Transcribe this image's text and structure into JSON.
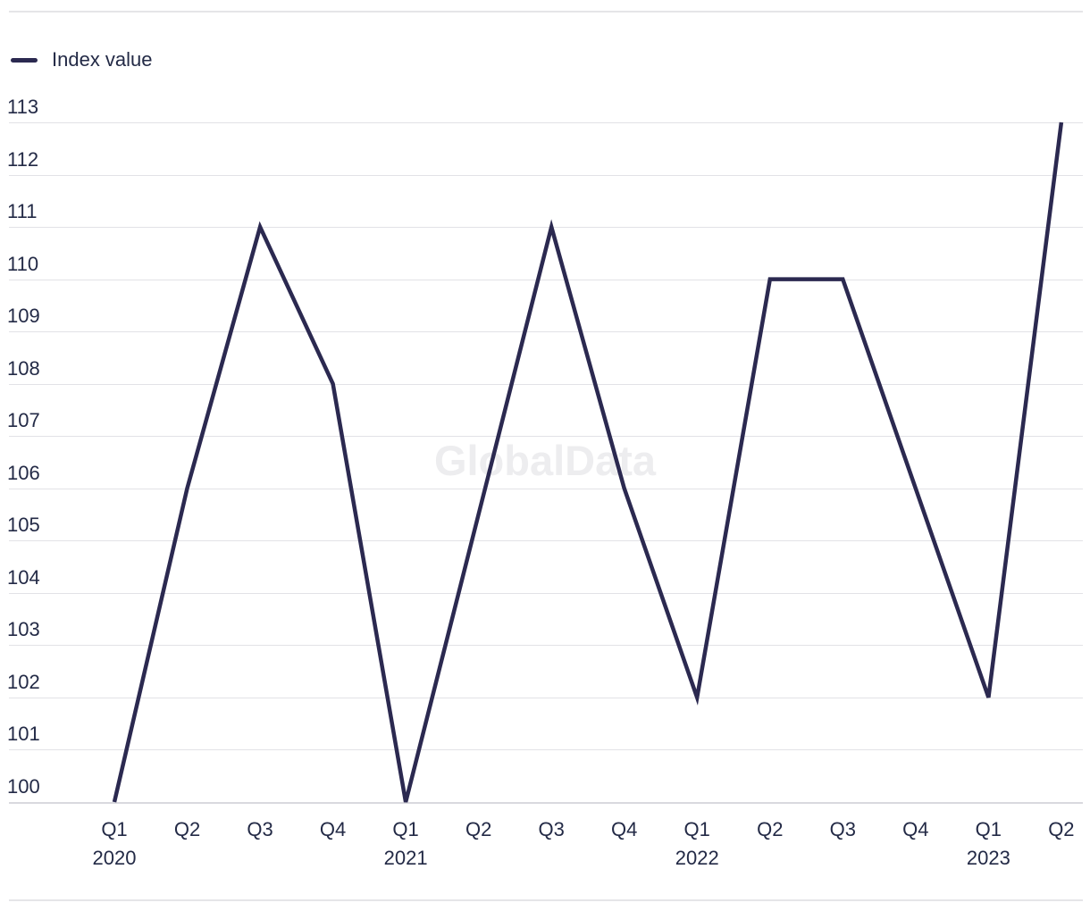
{
  "watermark": "GlobalData",
  "colors": {
    "background": "#ffffff",
    "line": "#2b2950",
    "text": "#232a46",
    "gridline": "#e2e2e6",
    "axis_line": "#d9d9de",
    "divider": "#e5e5e8",
    "watermark": "#ededef"
  },
  "chart_data": {
    "type": "line",
    "title": "",
    "legend_position": "top-left",
    "grid": "horizontal",
    "ylim": [
      100,
      113
    ],
    "yticks": [
      113,
      112,
      111,
      110,
      109,
      108,
      107,
      106,
      105,
      104,
      103,
      102,
      101,
      100
    ],
    "x_ticks": [
      {
        "q": "Q1",
        "year": "2020"
      },
      {
        "q": "Q2",
        "year": ""
      },
      {
        "q": "Q3",
        "year": ""
      },
      {
        "q": "Q4",
        "year": ""
      },
      {
        "q": "Q1",
        "year": "2021"
      },
      {
        "q": "Q2",
        "year": ""
      },
      {
        "q": "Q3",
        "year": ""
      },
      {
        "q": "Q4",
        "year": ""
      },
      {
        "q": "Q1",
        "year": "2022"
      },
      {
        "q": "Q2",
        "year": ""
      },
      {
        "q": "Q3",
        "year": ""
      },
      {
        "q": "Q4",
        "year": ""
      },
      {
        "q": "Q1",
        "year": "2023"
      },
      {
        "q": "Q2",
        "year": ""
      }
    ],
    "categories": [
      "Q1 2020",
      "Q2 2020",
      "Q3 2020",
      "Q4 2020",
      "Q1 2021",
      "Q2 2021",
      "Q3 2021",
      "Q4 2021",
      "Q1 2022",
      "Q2 2022",
      "Q3 2022",
      "Q4 2022",
      "Q1 2023",
      "Q2 2023"
    ],
    "series": [
      {
        "name": "Index value",
        "values": [
          100,
          106,
          111,
          108,
          100,
          105.5,
          111,
          106,
          102,
          110,
          110,
          106,
          102,
          113
        ]
      }
    ]
  }
}
